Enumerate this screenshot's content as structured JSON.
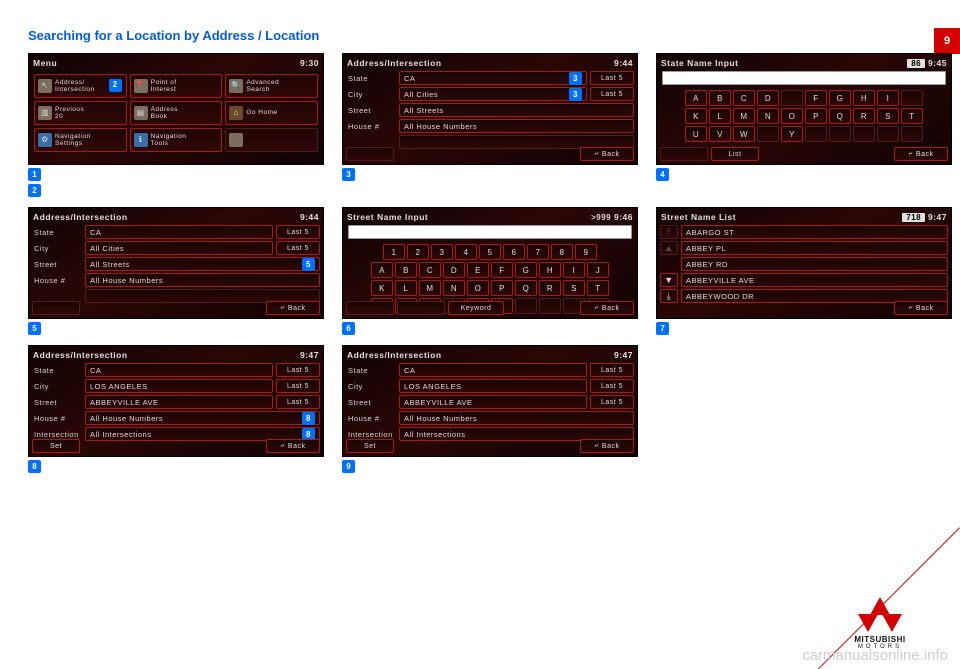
{
  "page_number": "9",
  "title": "Searching for a Location by Address / Location",
  "watermark": "carmanualsonline.info",
  "logo": {
    "line1": "MITSUBISHI",
    "line2": "MOTORS"
  },
  "captions": {
    "c1a": "1",
    "c1a_text": "",
    "c1b": "2",
    "c1b_text": "",
    "c3": "3",
    "c4": "4",
    "c5": "5",
    "c6": "6",
    "c7": "7",
    "c8": "8",
    "c9": "9"
  },
  "shared": {
    "back": "Back",
    "last5": "Last 5",
    "set": "Set",
    "list": "List",
    "keyword": "Keyword"
  },
  "screens": {
    "s1": {
      "title": "Menu",
      "time": "9:30",
      "items": [
        {
          "icon": "arrow",
          "label": "Address/\nIntersection",
          "badge": "2"
        },
        {
          "icon": "pin",
          "label": "Point of\nInterest"
        },
        {
          "icon": "globe",
          "label": "Advanced\nSearch"
        },
        {
          "icon": "page",
          "label": "Previous\n20"
        },
        {
          "icon": "book",
          "label": "Address\nBook"
        },
        {
          "icon": "home",
          "label": "Go Home"
        },
        {
          "icon": "gear",
          "label": "Navigation\nSettings"
        },
        {
          "icon": "info",
          "label": "Navigation\nTools"
        },
        {
          "icon": "dim",
          "label": "",
          "dim": true
        }
      ]
    },
    "s2": {
      "title": "Address/Intersection",
      "time": "9:44",
      "rows": [
        {
          "label": "State",
          "value": "CA",
          "badge": "3",
          "last5": true
        },
        {
          "label": "City",
          "value": "All Cities",
          "badge": "3",
          "last5": true
        },
        {
          "label": "Street",
          "value": "All Streets"
        },
        {
          "label": "House #",
          "value": "All House Numbers"
        },
        {
          "label": "",
          "value": "",
          "dim": true
        }
      ]
    },
    "s3": {
      "title": "State Name Input",
      "count": "86",
      "time": "9:45",
      "rows": [
        [
          "A",
          "B",
          "C",
          "D",
          "",
          "F",
          "G",
          "H",
          "I",
          ""
        ],
        [
          "K",
          "L",
          "M",
          "N",
          "O",
          "P",
          "Q",
          "R",
          "S",
          "T"
        ],
        [
          "U",
          "V",
          "W",
          "",
          "Y",
          "",
          "",
          "",
          "",
          ""
        ]
      ]
    },
    "s4": {
      "title": "Address/Intersection",
      "time": "9:44",
      "rows": [
        {
          "label": "State",
          "value": "CA",
          "last5": true
        },
        {
          "label": "City",
          "value": "All Cities",
          "last5": true
        },
        {
          "label": "Street",
          "value": "All Streets",
          "badge": "5"
        },
        {
          "label": "House #",
          "value": "All House Numbers"
        },
        {
          "label": "",
          "value": "",
          "dim": true
        }
      ]
    },
    "s5": {
      "title": "Street Name Input",
      "count": ">999",
      "time": "9:46",
      "numrow": [
        "1",
        "2",
        "3",
        "4",
        "5",
        "6",
        "7",
        "8",
        "9"
      ],
      "rows": [
        [
          "A",
          "B",
          "C",
          "D",
          "E",
          "F",
          "G",
          "H",
          "I",
          "J"
        ],
        [
          "K",
          "L",
          "M",
          "N",
          "O",
          "P",
          "Q",
          "R",
          "S",
          "T"
        ],
        [
          "U",
          "V",
          "W",
          "",
          "Y",
          "Z",
          "",
          "",
          "",
          ""
        ]
      ]
    },
    "s6": {
      "title": "Street Name List",
      "count": "718",
      "time": "9:47",
      "items": [
        "ABARGO ST",
        "ABBEY PL",
        "ABBEY RD",
        "ABBEYVILLE AVE",
        "ABBEYWOOD DR"
      ]
    },
    "s7": {
      "title": "Address/Intersection",
      "time": "9:47",
      "rows": [
        {
          "label": "State",
          "value": "CA",
          "last5": true
        },
        {
          "label": "City",
          "value": "LOS ANGELES",
          "last5": true
        },
        {
          "label": "Street",
          "value": "ABBEYVILLE AVE",
          "last5": true
        },
        {
          "label": "House #",
          "value": "All House Numbers",
          "badge": "8"
        },
        {
          "label": "Intersection",
          "value": "All Intersections",
          "badge": "8"
        }
      ]
    },
    "s8": {
      "title": "Address/Intersection",
      "time": "9:47",
      "rows": [
        {
          "label": "State",
          "value": "CA",
          "last5": true
        },
        {
          "label": "City",
          "value": "LOS ANGELES",
          "last5": true
        },
        {
          "label": "Street",
          "value": "ABBEYVILLE AVE",
          "last5": true
        },
        {
          "label": "House #",
          "value": "All House Numbers"
        },
        {
          "label": "Intersection",
          "value": "All Intersections"
        }
      ]
    }
  }
}
